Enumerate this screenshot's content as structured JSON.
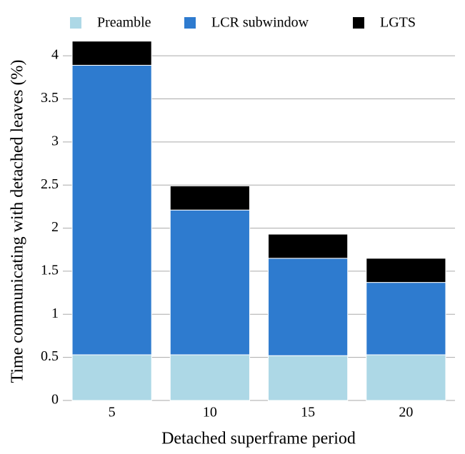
{
  "chart_data": {
    "type": "stacked_bar",
    "xlabel": "Detached superframe period",
    "ylabel": "Time communicating with detached leaves (%)",
    "categories": [
      "5",
      "10",
      "15",
      "20"
    ],
    "series": [
      {
        "name": "Preamble",
        "color": "#add8e6",
        "values": [
          0.53,
          0.53,
          0.52,
          0.53
        ]
      },
      {
        "name": "LCR subwindow",
        "color": "#2e7bcf",
        "values": [
          3.36,
          1.68,
          1.13,
          0.84
        ]
      },
      {
        "name": "LGTS",
        "color": "#000000",
        "values": [
          0.28,
          0.28,
          0.28,
          0.28
        ]
      }
    ],
    "ylim": [
      0,
      4.2
    ],
    "yticks": [
      0,
      0.5,
      1,
      1.5,
      2,
      2.5,
      3,
      3.5,
      4
    ],
    "grid": true,
    "legend": "top"
  }
}
